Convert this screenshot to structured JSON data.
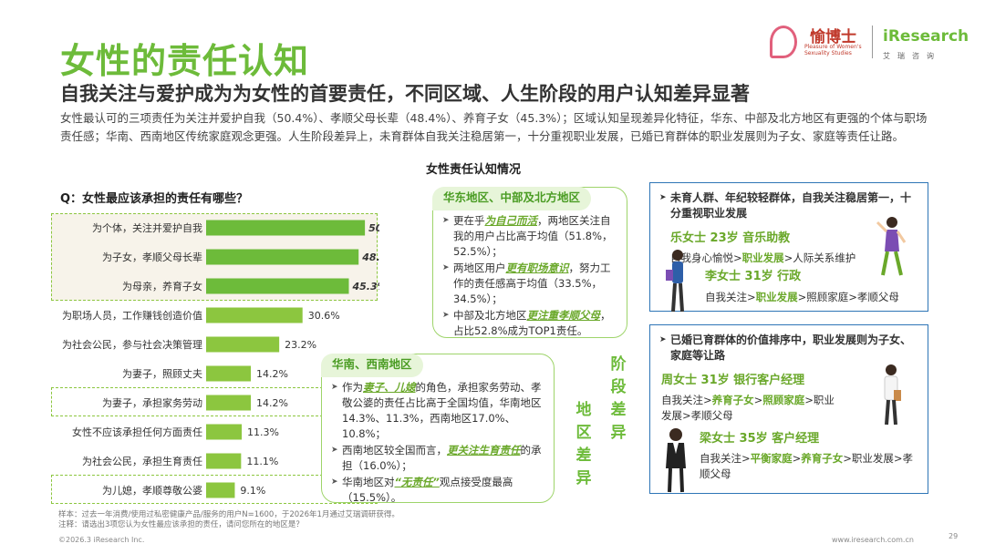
{
  "header": {
    "title": "女性的责任认知",
    "subtitle": "自我关注与爱护成为为女性的首要责任，不同区域、人生阶段的用户认知差异显著",
    "intro": "女性最认可的三项责任为关注并爱护自我（50.4%）、孝顺父母长辈（48.4%）、养育子女（45.3%）；区域认知呈现差异化特征，华东、中部及北方地区有更强的个体与职场责任感；华南、西南地区传统家庭观念更强。人生阶段差异上，未育群体自我关注稳居第一，十分重视职业发展，已婚已育群体的职业发展则为子女、家庭等责任让路。"
  },
  "logo": {
    "brand_cn": "愉博士",
    "brand_en": "Pleasure of Women's Sexuality Studies",
    "partner": "iResearch",
    "partner_cn": "艾瑞咨询"
  },
  "chart_section_title": "女性责任认知情况",
  "question": "Q：女性最应该承担的责任有哪些？",
  "chart_data": {
    "type": "bar",
    "orientation": "horizontal",
    "categories": [
      "为个体，关注并爱护自我",
      "为子女，孝顺父母长辈",
      "为母亲，养育子女",
      "为职场人员，工作赚钱创造价值",
      "为社会公民，参与社会决策管理",
      "为妻子，照顾丈夫",
      "为妻子，承担家务劳动",
      "女性不应该承担任何方面责任",
      "为社会公民，承担生育责任",
      "为儿媳，孝顺尊敬公婆"
    ],
    "values": [
      50.4,
      48.4,
      45.3,
      30.6,
      23.2,
      14.2,
      14.2,
      11.3,
      11.1,
      9.1
    ],
    "value_labels": [
      "50.4%",
      "48.4%",
      "45.3%",
      "30.6%",
      "23.2%",
      "14.2%",
      "14.2%",
      "11.3%",
      "11.1%",
      "9.1%"
    ],
    "highlighted_indices": [
      0,
      1,
      2
    ],
    "dashed_groups": [
      [
        0,
        2
      ],
      [
        6,
        6
      ],
      [
        9,
        9
      ]
    ],
    "xlim": [
      0,
      55
    ],
    "colors": {
      "top": "#6dbb3a",
      "other": "#8cc63f"
    }
  },
  "east_box": {
    "title": "华东地区、中部及北方地区",
    "items": [
      {
        "pre": "更在乎",
        "hl": "为自己而活",
        "post": "，两地区关注自我的用户占比高于均值（51.8%，52.5%）；"
      },
      {
        "pre": "两地区用户",
        "hl": "更有职场意识",
        "post": "，努力工作的责任感高于均值（33.5%，34.5%）；"
      },
      {
        "pre": "中部及北方地区",
        "hl": "更注重孝顺父母",
        "post": "，占比52.8%成为TOP1责任。"
      }
    ]
  },
  "south_box": {
    "title": "华南、西南地区",
    "items": [
      {
        "pre": "作为",
        "hl": "妻子、儿媳",
        "post": "的角色，承担家务劳动、孝敬公婆的责任占比高于全国均值，华南地区14.3%、11.3%，西南地区17.0%、10.8%；"
      },
      {
        "pre": "西南地区较全国而言，",
        "hl": "更关注生育责任",
        "post": "的承担（16.0%）；"
      },
      {
        "pre": "华南地区对",
        "hl": "“无责任”",
        "post": "观点接受度最高（15.5%）。"
      }
    ]
  },
  "region_diff_label": "地区差异",
  "stage_diff_label": "阶段差异",
  "unmarried_box": {
    "lead": "未育人群、年纪较轻群体，自我关注稳居第一，十分重视职业发展",
    "persona1": "乐女士  23岁  音乐助教",
    "path1": [
      "自我身心愉悦>",
      "职业发展",
      ">人际关系维护"
    ],
    "persona2": "李女士  31岁  行政",
    "path2": [
      "自我关注>",
      "职业发展",
      ">照顾家庭>孝顺父母"
    ]
  },
  "married_box": {
    "lead": "已婚已育群体的价值排序中，职业发展则为子女、家庭等让路",
    "persona1": "周女士  31岁  银行客户经理",
    "path1": [
      "自我关注>",
      "养育子女",
      ">",
      "照顾家庭",
      ">职业发展>孝顺父母"
    ],
    "persona2": "梁女士  35岁  客户经理",
    "path2": [
      "自我关注>",
      "平衡家庭",
      ">",
      "养育子女",
      ">职业发展>孝顺父母"
    ]
  },
  "notes": {
    "sample": "样本：过去一年消费/使用过私密健康产品/服务的用户N=1600，于2026年1月通过艾瑞调研获得。",
    "note": "注释：请选出3项您认为女性最应该承担的责任，请问您所在的地区是？"
  },
  "footer": {
    "copyright": "©2026.3 iResearch Inc.",
    "website": "www.iresearch.com.cn",
    "page": "29"
  }
}
